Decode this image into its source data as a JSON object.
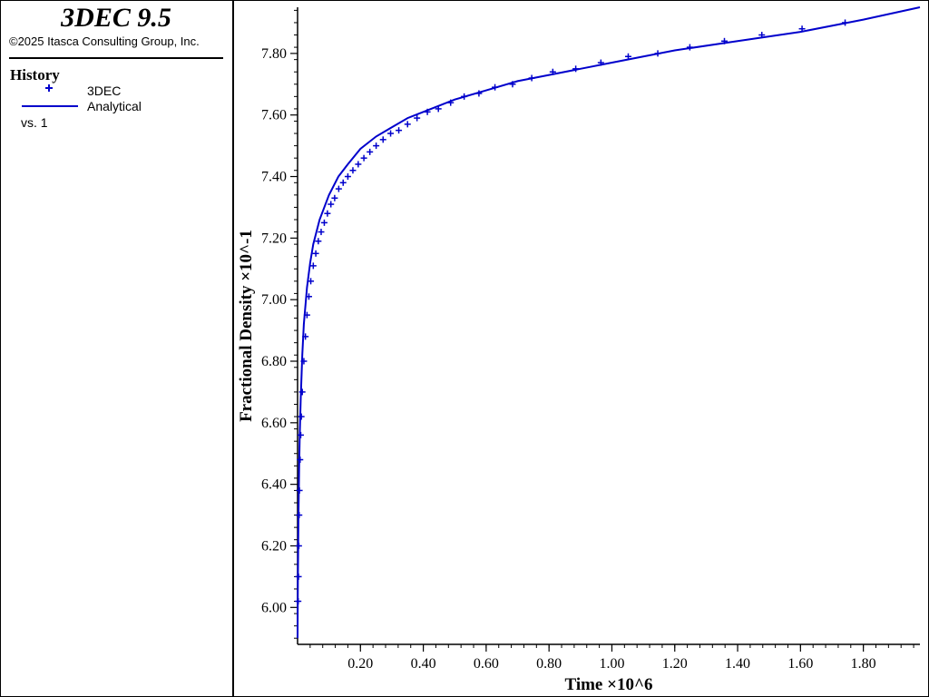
{
  "app": {
    "title": "3DEC 9.5",
    "copyright": "©2025 Itasca Consulting Group, Inc."
  },
  "legend": {
    "heading": "History",
    "entries": [
      {
        "label": "3DEC",
        "marker": "plus",
        "color": "#0000cc"
      },
      {
        "label": "Analytical",
        "marker": "line",
        "color": "#0000cc"
      }
    ],
    "versus": "vs. 1"
  },
  "chart_data": {
    "type": "scatter",
    "xlabel": "Time ×10^6",
    "ylabel": "Fractional Density ×10^-1",
    "xlim": [
      0,
      1.98
    ],
    "ylim": [
      5.88,
      7.95
    ],
    "xticks": [
      "0.20",
      "0.40",
      "0.60",
      "0.80",
      "1.00",
      "1.20",
      "1.40",
      "1.60",
      "1.80"
    ],
    "yticks": [
      "6.00",
      "6.20",
      "6.40",
      "6.60",
      "6.80",
      "7.00",
      "7.20",
      "7.40",
      "7.60",
      "7.80"
    ],
    "grid": false,
    "series": [
      {
        "name": "3DEC",
        "marker": "plus",
        "color": "#0000cc",
        "x": [
          0.002,
          0.003,
          0.004,
          0.005,
          0.006,
          0.008,
          0.01,
          0.012,
          0.015,
          0.02,
          0.025,
          0.03,
          0.036,
          0.042,
          0.05,
          0.058,
          0.066,
          0.075,
          0.085,
          0.095,
          0.106,
          0.118,
          0.131,
          0.145,
          0.16,
          0.176,
          0.193,
          0.211,
          0.23,
          0.25,
          0.272,
          0.296,
          0.322,
          0.35,
          0.38,
          0.413,
          0.448,
          0.487,
          0.53,
          0.577,
          0.628,
          0.684,
          0.745,
          0.812,
          0.885,
          0.965,
          1.052,
          1.146,
          1.248,
          1.358,
          1.477,
          1.605,
          1.742
        ],
        "y": [
          6.02,
          6.1,
          6.2,
          6.3,
          6.38,
          6.48,
          6.56,
          6.62,
          6.7,
          6.8,
          6.88,
          6.95,
          7.01,
          7.06,
          7.11,
          7.15,
          7.19,
          7.22,
          7.25,
          7.28,
          7.31,
          7.33,
          7.36,
          7.38,
          7.4,
          7.42,
          7.44,
          7.46,
          7.48,
          7.5,
          7.52,
          7.54,
          7.55,
          7.57,
          7.59,
          7.61,
          7.62,
          7.64,
          7.66,
          7.67,
          7.69,
          7.7,
          7.72,
          7.74,
          7.75,
          7.77,
          7.79,
          7.8,
          7.82,
          7.84,
          7.86,
          7.88,
          7.9
        ]
      },
      {
        "name": "Analytical",
        "marker": "line",
        "color": "#0000cc",
        "x": [
          0.0,
          0.001,
          0.002,
          0.003,
          0.005,
          0.007,
          0.01,
          0.015,
          0.02,
          0.03,
          0.04,
          0.05,
          0.07,
          0.1,
          0.13,
          0.16,
          0.2,
          0.25,
          0.3,
          0.35,
          0.4,
          0.5,
          0.6,
          0.7,
          0.8,
          0.9,
          1.0,
          1.2,
          1.4,
          1.6,
          1.8,
          1.98
        ],
        "y": [
          5.9,
          6.08,
          6.2,
          6.3,
          6.45,
          6.56,
          6.68,
          6.82,
          6.92,
          7.04,
          7.12,
          7.18,
          7.26,
          7.34,
          7.4,
          7.44,
          7.49,
          7.53,
          7.56,
          7.59,
          7.61,
          7.65,
          7.68,
          7.71,
          7.73,
          7.75,
          7.77,
          7.81,
          7.84,
          7.87,
          7.91,
          7.95
        ]
      }
    ]
  }
}
